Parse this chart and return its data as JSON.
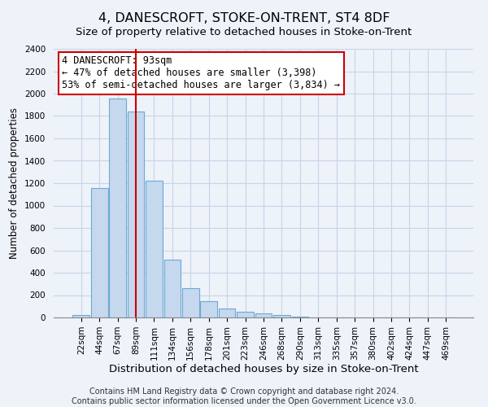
{
  "title": "4, DANESCROFT, STOKE-ON-TRENT, ST4 8DF",
  "subtitle": "Size of property relative to detached houses in Stoke-on-Trent",
  "xlabel": "Distribution of detached houses by size in Stoke-on-Trent",
  "ylabel": "Number of detached properties",
  "bar_labels": [
    "22sqm",
    "44sqm",
    "67sqm",
    "89sqm",
    "111sqm",
    "134sqm",
    "156sqm",
    "178sqm",
    "201sqm",
    "223sqm",
    "246sqm",
    "268sqm",
    "290sqm",
    "313sqm",
    "335sqm",
    "357sqm",
    "380sqm",
    "402sqm",
    "424sqm",
    "447sqm",
    "469sqm"
  ],
  "bar_values": [
    25,
    1155,
    1960,
    1840,
    1225,
    520,
    265,
    148,
    78,
    50,
    38,
    20,
    8,
    3,
    2,
    1,
    1,
    0,
    0,
    0,
    0
  ],
  "bar_color": "#c5d8ee",
  "bar_edge_color": "#6aaad4",
  "vline_x_idx": 3,
  "vline_color": "#cc0000",
  "annotation_title": "4 DANESCROFT: 93sqm",
  "annotation_line1": "← 47% of detached houses are smaller (3,398)",
  "annotation_line2": "53% of semi-detached houses are larger (3,834) →",
  "annotation_box_edge": "#cc0000",
  "ylim": [
    0,
    2400
  ],
  "yticks": [
    0,
    200,
    400,
    600,
    800,
    1000,
    1200,
    1400,
    1600,
    1800,
    2000,
    2200,
    2400
  ],
  "footer1": "Contains HM Land Registry data © Crown copyright and database right 2024.",
  "footer2": "Contains public sector information licensed under the Open Government Licence v3.0.",
  "title_fontsize": 11.5,
  "subtitle_fontsize": 9.5,
  "xlabel_fontsize": 9.5,
  "ylabel_fontsize": 8.5,
  "tick_fontsize": 7.5,
  "annotation_fontsize": 8.5,
  "footer_fontsize": 7,
  "bg_color": "#eef2f9"
}
